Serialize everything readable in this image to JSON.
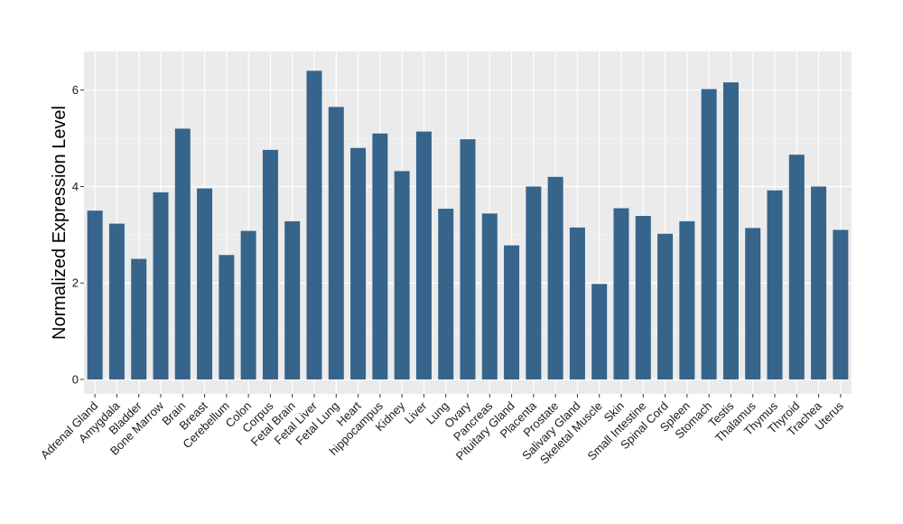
{
  "chart_data": {
    "type": "bar",
    "title": "",
    "xlabel": "",
    "ylabel": "Normalized Expression Level",
    "ylim": [
      -0.3,
      6.8
    ],
    "yticks": [
      0,
      2,
      4,
      6
    ],
    "grid": true,
    "colors": {
      "bar": "#36648B",
      "panel": "#EBEBEB",
      "grid_major": "#FFFFFF",
      "grid_minor": "#F5F5F5"
    },
    "categories": [
      "Adrenal Gland",
      "Amygdala",
      "Bladder",
      "Bone Marrow",
      "Brain",
      "Breast",
      "Cerebellum",
      "Colon",
      "Corpus",
      "Fetal Brain",
      "Fetal Liver",
      "Fetal Lung",
      "Heart",
      "hippocampus",
      "Kidney",
      "Liver",
      "Lung",
      "Ovary",
      "Pancreas",
      "Pituitary Gland",
      "Placenta",
      "Prostate",
      "Salivary Gland",
      "Skeletal Muscle",
      "Skin",
      "Small Intestine",
      "Spinal Cord",
      "Spleen",
      "Stomach",
      "Testis",
      "Thalamus",
      "Thymus",
      "Thyroid",
      "Trachea",
      "Uterus"
    ],
    "values": [
      3.5,
      3.23,
      2.5,
      3.88,
      5.2,
      3.96,
      2.58,
      3.08,
      4.76,
      3.28,
      6.4,
      5.65,
      4.8,
      5.1,
      4.32,
      5.14,
      3.54,
      4.98,
      3.44,
      2.78,
      4.0,
      4.2,
      3.15,
      1.98,
      3.55,
      3.39,
      3.02,
      3.28,
      6.02,
      6.16,
      3.14,
      3.92,
      4.66,
      4.0,
      3.1
    ]
  }
}
